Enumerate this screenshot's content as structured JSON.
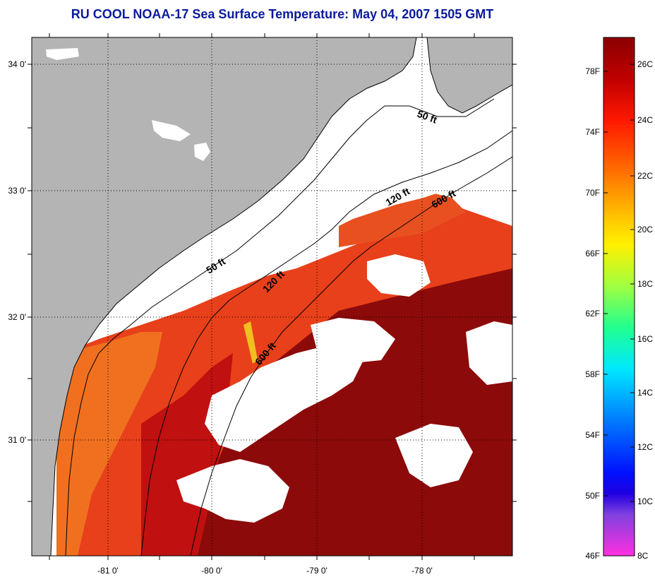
{
  "title": "RU COOL  NOAA-17  Sea Surface Temperature:  May 04, 2007 1505 GMT",
  "colors": {
    "land": "#b4b4b4",
    "cloud": "#ffffff",
    "sst_warm": "#8c0000",
    "sst_mid": "#d81010",
    "sst_shelf": "#f04010",
    "sst_orange": "#f07818",
    "title_blue": "#0a1a9c"
  },
  "map": {
    "lat_labels": [
      "34 0'",
      "33 0'",
      "32 0'",
      "31 0'"
    ],
    "lon_labels": [
      "-81 0'",
      "-80 0'",
      "-79 0'",
      "-78 0'"
    ],
    "contours": [
      {
        "label": "50 ft"
      },
      {
        "label": "120 ft"
      },
      {
        "label": "600 ft"
      },
      {
        "label": "50 ft"
      },
      {
        "label": "120 ft"
      },
      {
        "label": "600 ft"
      }
    ]
  },
  "colorbar": {
    "fahrenheit": [
      "78F",
      "74F",
      "70F",
      "66F",
      "62F",
      "58F",
      "54F",
      "50F",
      "46F"
    ],
    "celsius": [
      "26C",
      "24C",
      "22C",
      "20C",
      "18C",
      "16C",
      "14C",
      "12C",
      "10C",
      "8C"
    ]
  }
}
